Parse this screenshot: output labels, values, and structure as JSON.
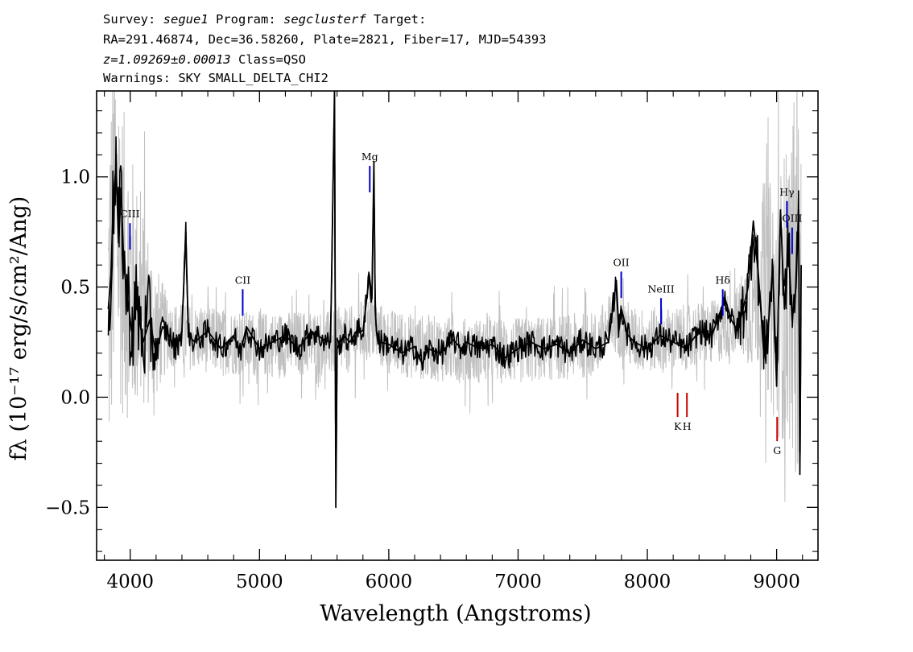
{
  "header": {
    "survey_label": "Survey:",
    "survey": "segue1",
    "program_label": "Program:",
    "program": "segclusterf",
    "target_label": "Target:",
    "line2": "RA=291.46874, Dec=36.58260, Plate=2821, Fiber=17, MJD=54393",
    "redshift": "z=1.09269±0.00013",
    "class": "Class=QSO",
    "warnings": "Warnings: SKY SMALL_DELTA_CHI2"
  },
  "chart_data": {
    "type": "line",
    "xlabel": "Wavelength (Angstroms)",
    "ylabel": "fλ (10⁻¹⁷ erg/s/cm²/Ang)",
    "xlim": [
      3740,
      9320
    ],
    "ylim": [
      -0.74,
      1.39
    ],
    "xticks": [
      4000,
      5000,
      6000,
      7000,
      8000,
      9000
    ],
    "xtick_labels": [
      "4000",
      "5000",
      "6000",
      "7000",
      "8000",
      "9000"
    ],
    "yticks": [
      -0.5,
      0.0,
      0.5,
      1.0
    ],
    "ytick_labels": [
      "−0.5",
      "0.0",
      "0.5",
      "1.0"
    ],
    "grid": false,
    "series": [
      {
        "color": "#c0c0c0",
        "x": [
          3830,
          3880,
          3950,
          4050,
          4200,
          4400,
          4600,
          4800,
          5000,
          5200,
          5400,
          5550,
          5700,
          5850,
          6000,
          6200,
          6400,
          6600,
          6800,
          7000,
          7200,
          7400,
          7600,
          7750,
          7900,
          8050,
          8200,
          8350,
          8500,
          8650,
          8800,
          8900,
          9000,
          9100,
          9190
        ],
        "y": [
          0.4,
          0.85,
          0.6,
          0.45,
          0.3,
          0.28,
          0.26,
          0.25,
          0.24,
          0.24,
          0.25,
          0.24,
          0.26,
          0.32,
          0.25,
          0.23,
          0.22,
          0.21,
          0.21,
          0.21,
          0.22,
          0.23,
          0.24,
          0.35,
          0.26,
          0.26,
          0.26,
          0.28,
          0.29,
          0.33,
          0.42,
          0.55,
          0.4,
          0.5,
          0.45
        ]
      },
      {
        "color": "#000000",
        "x": [
          3830,
          3850,
          3870,
          3890,
          3910,
          3930,
          3950,
          3980,
          4010,
          4050,
          4100,
          4150,
          4200,
          4250,
          4300,
          4350,
          4400,
          4430,
          4450,
          4500,
          4600,
          4700,
          4800,
          4850,
          4900,
          5000,
          5100,
          5200,
          5300,
          5400,
          5500,
          5550,
          5580,
          5590,
          5600,
          5650,
          5700,
          5750,
          5800,
          5850,
          5870,
          5885,
          5895,
          5905,
          5930,
          6000,
          6100,
          6200,
          6260,
          6300,
          6400,
          6500,
          6560,
          6600,
          6700,
          6800,
          6900,
          7000,
          7100,
          7200,
          7300,
          7400,
          7500,
          7600,
          7700,
          7760,
          7780,
          7800,
          7850,
          7900,
          8000,
          8100,
          8200,
          8300,
          8400,
          8500,
          8600,
          8650,
          8700,
          8780,
          8820,
          8860,
          8900,
          8940,
          8970,
          9000,
          9030,
          9060,
          9090,
          9120,
          9150,
          9170,
          9180,
          9190
        ],
        "y": [
          0.4,
          0.55,
          0.9,
          1.05,
          0.7,
          0.95,
          0.6,
          0.45,
          0.3,
          0.42,
          0.25,
          0.35,
          0.2,
          0.32,
          0.28,
          0.22,
          0.3,
          0.75,
          0.28,
          0.25,
          0.3,
          0.22,
          0.28,
          0.2,
          0.32,
          0.22,
          0.25,
          0.28,
          0.22,
          0.3,
          0.26,
          0.25,
          1.4,
          -0.5,
          0.22,
          0.28,
          0.25,
          0.3,
          0.3,
          0.55,
          0.45,
          1.07,
          0.4,
          0.3,
          0.25,
          0.24,
          0.2,
          0.23,
          0.15,
          0.22,
          0.2,
          0.26,
          0.22,
          0.25,
          0.22,
          0.24,
          0.18,
          0.22,
          0.25,
          0.22,
          0.24,
          0.2,
          0.26,
          0.22,
          0.25,
          0.53,
          0.3,
          0.4,
          0.28,
          0.25,
          0.22,
          0.28,
          0.25,
          0.22,
          0.3,
          0.28,
          0.45,
          0.35,
          0.3,
          0.5,
          0.8,
          0.55,
          0.2,
          0.35,
          0.6,
          0.05,
          0.85,
          0.4,
          0.7,
          0.35,
          0.5,
          0.85,
          -0.35,
          0.6
        ]
      }
    ],
    "annotations": [
      {
        "label": "CIII",
        "x": 3998,
        "color": "#0000cc",
        "side": "above",
        "y_top": 0.79,
        "y_bot": 0.67
      },
      {
        "label": "CII",
        "x": 4870,
        "color": "#0000cc",
        "side": "above",
        "y_top": 0.49,
        "y_bot": 0.37
      },
      {
        "label": "Mg",
        "x": 5853,
        "color": "#0000cc",
        "side": "above",
        "y_top": 1.05,
        "y_bot": 0.93
      },
      {
        "label": "OII",
        "x": 7798,
        "color": "#0000cc",
        "side": "above",
        "y_top": 0.57,
        "y_bot": 0.45
      },
      {
        "label": "NeIII",
        "x": 8106,
        "color": "#0000cc",
        "side": "above",
        "y_top": 0.45,
        "y_bot": 0.33
      },
      {
        "label": "Hδ",
        "x": 8583,
        "color": "#0000cc",
        "side": "above",
        "y_top": 0.49,
        "y_bot": 0.37
      },
      {
        "label": "Hγ",
        "x": 9080,
        "color": "#0000cc",
        "side": "above",
        "y_top": 0.89,
        "y_bot": 0.77
      },
      {
        "label": "OIII",
        "x": 9120,
        "color": "#0000cc",
        "side": "above",
        "y_top": 0.77,
        "y_bot": 0.65
      },
      {
        "label": "K",
        "x": 8234,
        "color": "#cc0000",
        "side": "below",
        "y_top": 0.02,
        "y_bot": -0.09
      },
      {
        "label": "H",
        "x": 8306,
        "color": "#cc0000",
        "side": "below",
        "y_top": 0.02,
        "y_bot": -0.09
      },
      {
        "label": "G",
        "x": 9004,
        "color": "#cc0000",
        "side": "below",
        "y_top": -0.09,
        "y_bot": -0.2
      }
    ]
  }
}
